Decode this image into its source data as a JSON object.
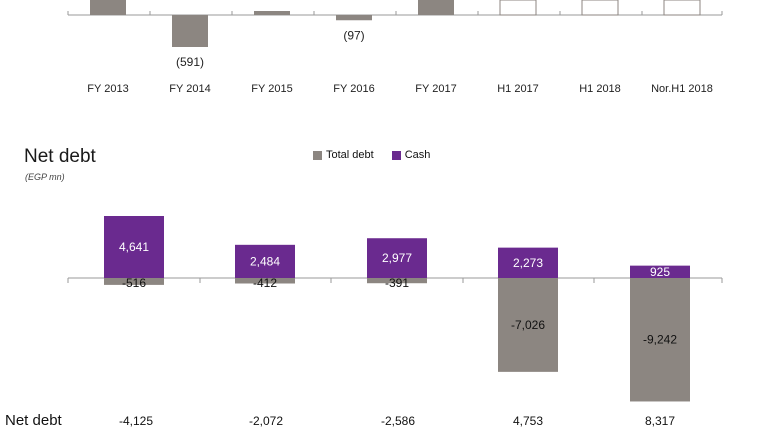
{
  "chart_data": [
    {
      "type": "bar",
      "categories": [
        "FY 2013",
        "FY 2014",
        "FY 2015",
        "FY 2016",
        "FY 2017",
        "H1 2017",
        "H1 2018",
        "Nor.H1 2018"
      ],
      "values": [
        null,
        -591,
        null,
        -97,
        null,
        null,
        null,
        null
      ],
      "value_labels": [
        "",
        "(591)",
        "",
        "(97)",
        "",
        "",
        "",
        ""
      ],
      "colors": {
        "bar": "#8c8681",
        "empty_box": "#8c8681"
      }
    },
    {
      "type": "bar",
      "title": "Net debt",
      "subtitle": "(EGP mn)",
      "legend": {
        "position": "top-center",
        "entries": [
          "Total debt",
          "Cash"
        ]
      },
      "series": [
        {
          "name": "Total debt",
          "values": [
            -516,
            -412,
            -391,
            -7026,
            -9242
          ],
          "labels": [
            "-516",
            "-412",
            "-391",
            "-7,026",
            "-9,242"
          ],
          "color": "#8c8681"
        },
        {
          "name": "Cash",
          "values": [
            4641,
            2484,
            2977,
            2273,
            925
          ],
          "labels": [
            "4,641",
            "2,484",
            "2,977",
            "2,273",
            "925"
          ],
          "color": "#6a2a8f"
        }
      ],
      "ylim": [
        -9242,
        4641
      ],
      "net_debt": {
        "label": "Net debt",
        "values": [
          "-4,125",
          "-2,072",
          "-2,586",
          "4,753",
          "8,317"
        ]
      }
    }
  ]
}
